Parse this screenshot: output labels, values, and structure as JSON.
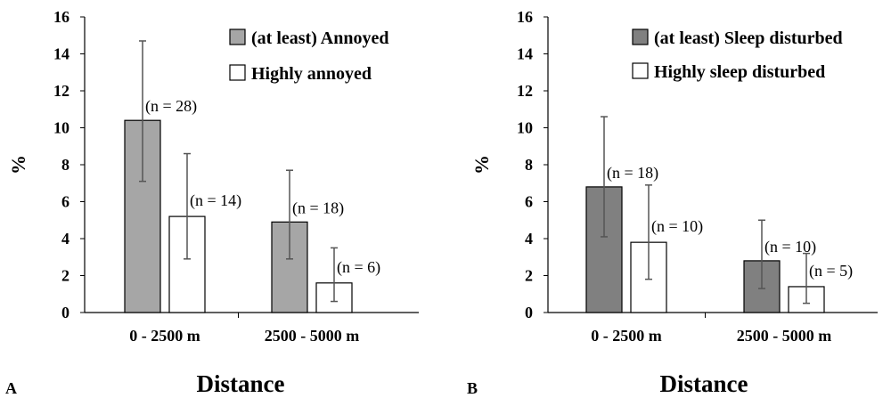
{
  "chart_data": [
    {
      "type": "bar",
      "panel_label": "A",
      "xlabel": "Distance",
      "ylabel": "%",
      "ylim": [
        0,
        16
      ],
      "yticks": [
        0,
        2,
        4,
        6,
        8,
        10,
        12,
        14,
        16
      ],
      "categories": [
        "0 - 2500 m",
        "2500 - 5000 m"
      ],
      "legend_position": "top-right",
      "series": [
        {
          "name": "(at least) Annoyed",
          "color": "#a6a6a6",
          "values": [
            10.4,
            4.9
          ],
          "error_low": [
            7.1,
            2.9
          ],
          "error_high": [
            14.7,
            7.7
          ],
          "annotations": [
            "(n = 28)",
            "(n = 18)"
          ]
        },
        {
          "name": "Highly annoyed",
          "color": "#ffffff",
          "values": [
            5.2,
            1.6
          ],
          "error_low": [
            2.9,
            0.6
          ],
          "error_high": [
            8.6,
            3.5
          ],
          "annotations": [
            "(n = 14)",
            "(n = 6)"
          ]
        }
      ]
    },
    {
      "type": "bar",
      "panel_label": "B",
      "xlabel": "Distance",
      "ylabel": "%",
      "ylim": [
        0,
        16
      ],
      "yticks": [
        0,
        2,
        4,
        6,
        8,
        10,
        12,
        14,
        16
      ],
      "categories": [
        "0 - 2500 m",
        "2500 - 5000 m"
      ],
      "legend_position": "top-right",
      "series": [
        {
          "name": "(at least) Sleep disturbed",
          "color": "#808080",
          "values": [
            6.8,
            2.8
          ],
          "error_low": [
            4.1,
            1.3
          ],
          "error_high": [
            10.6,
            5.0
          ],
          "annotations": [
            "(n = 18)",
            "(n = 10)"
          ]
        },
        {
          "name": "Highly sleep disturbed",
          "color": "#ffffff",
          "values": [
            3.8,
            1.4
          ],
          "error_low": [
            1.8,
            0.5
          ],
          "error_high": [
            6.9,
            3.2
          ],
          "annotations": [
            "(n = 10)",
            "(n = 5)"
          ]
        }
      ]
    }
  ]
}
